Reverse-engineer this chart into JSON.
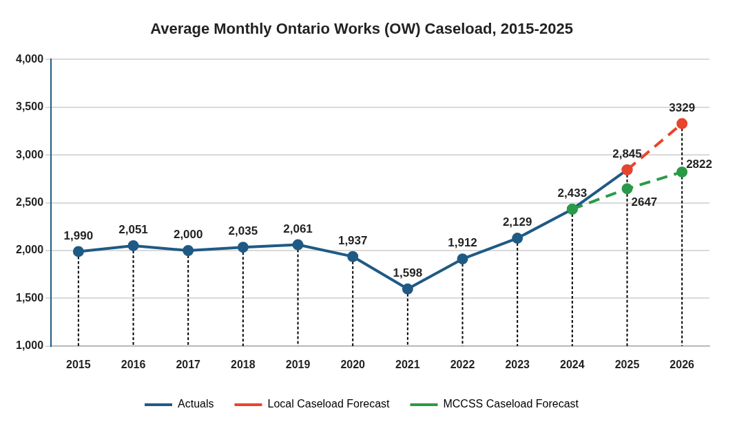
{
  "chart_data": {
    "type": "line",
    "title": "Average Monthly Ontario Works (OW) Caseload, 2015-2025",
    "categories": [
      "2015",
      "2016",
      "2017",
      "2018",
      "2019",
      "2020",
      "2021",
      "2022",
      "2023",
      "2024",
      "2025",
      "2026"
    ],
    "series": [
      {
        "name": "Actuals",
        "color": "#1f5a85",
        "line_style": "solid",
        "values": [
          1990,
          2051,
          2000,
          2035,
          2061,
          1937,
          1598,
          1912,
          2129,
          2433,
          2845,
          null
        ],
        "value_labels": [
          "1,990",
          "2,051",
          "2,000",
          "2,035",
          "2,061",
          "1,937",
          "1,598",
          "1,912",
          "2,129",
          "2,433",
          null,
          null
        ]
      },
      {
        "name": "Local Caseload Forecast",
        "color": "#e8452c",
        "line_style": "dashed",
        "values": [
          null,
          null,
          null,
          null,
          null,
          null,
          null,
          null,
          null,
          null,
          2845,
          3329
        ],
        "value_labels": [
          null,
          null,
          null,
          null,
          null,
          null,
          null,
          null,
          null,
          null,
          "2,845",
          "3329"
        ]
      },
      {
        "name": "MCCSS Caseload Forecast",
        "color": "#2a9a48",
        "line_style": "dashed",
        "values": [
          null,
          null,
          null,
          null,
          null,
          null,
          null,
          null,
          null,
          2433,
          2647,
          2822
        ],
        "value_labels": [
          null,
          null,
          null,
          null,
          null,
          null,
          null,
          null,
          null,
          null,
          "2647",
          "2822"
        ]
      }
    ],
    "ylim": [
      1000,
      4000
    ],
    "yticks": [
      {
        "value": 1000,
        "label": "1,000"
      },
      {
        "value": 1500,
        "label": "1,500"
      },
      {
        "value": 2000,
        "label": "2,000"
      },
      {
        "value": 2500,
        "label": "2,500"
      },
      {
        "value": 3000,
        "label": "3,000"
      },
      {
        "value": 3500,
        "label": "3,500"
      },
      {
        "value": 4000,
        "label": "4,000"
      }
    ],
    "grid": "y",
    "legend": "bottom",
    "marker": "circle"
  }
}
